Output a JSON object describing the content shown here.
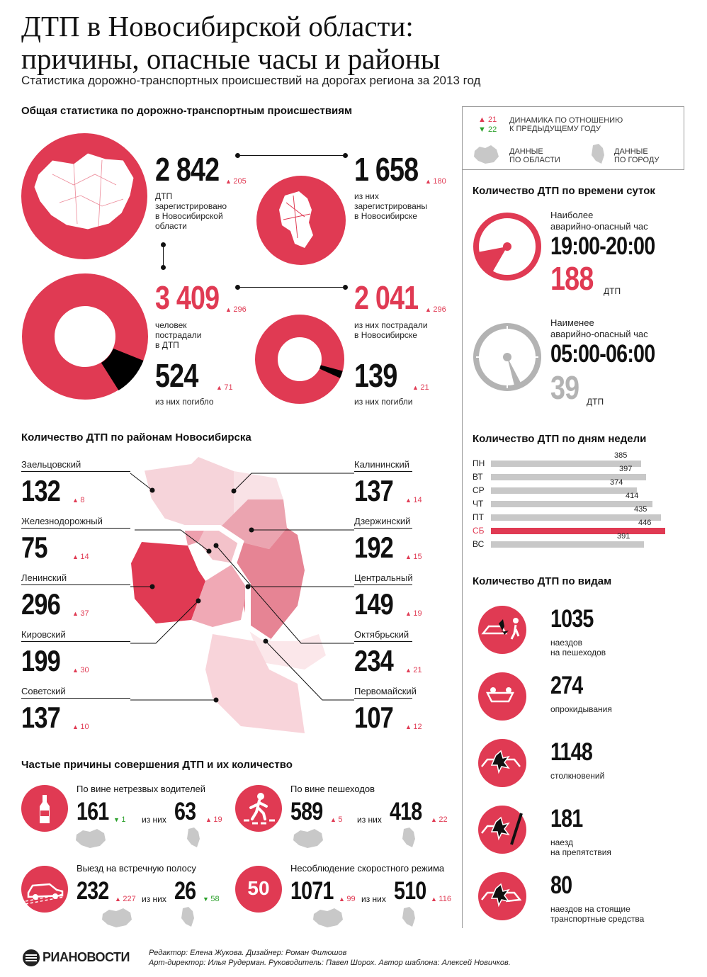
{
  "header": {
    "title_line1": "ДТП в Новосибирской области:",
    "title_line2": "причины, опасные часы и районы",
    "subtitle": "Статистика дорожно-транспортных происшествий на дорогах региона за 2013 год"
  },
  "legend": {
    "up_value": "21",
    "down_value": "22",
    "dynamics_label_1": "ДИНАМИКА ПО ОТНОШЕНИЮ",
    "dynamics_label_2": "К ПРЕДЫДУЩЕМУ ГОДУ",
    "region_label_1": "ДАННЫЕ",
    "region_label_2": "ПО ОБЛАСТИ",
    "city_label_1": "ДАННЫЕ",
    "city_label_2": "ПО ГОРОДУ",
    "colors": {
      "up": "#e03a53",
      "down": "#2aa02a"
    }
  },
  "general": {
    "heading": "Общая статистика по дорожно-транспортным происшествиям",
    "region_accidents": {
      "value": "2 842",
      "delta": "205",
      "l1": "ДТП",
      "l2": "зарегистрировано",
      "l3": "в Новосибирской",
      "l4": "области"
    },
    "city_accidents": {
      "value": "1 658",
      "delta": "180",
      "l1": "из них",
      "l2": "зарегистрированы",
      "l3": "в Новосибирске"
    },
    "region_injured": {
      "value": "3 409",
      "delta": "296",
      "l1": "человек",
      "l2": "пострадали",
      "l3": "в ДТП"
    },
    "region_killed": {
      "value": "524",
      "delta": "71",
      "l1": "из них погибло"
    },
    "city_injured": {
      "value": "2 041",
      "delta": "296",
      "l1": "из них пострадали",
      "l2": "в Новосибирске"
    },
    "city_killed": {
      "value": "139",
      "delta": "21",
      "l1": "из них погибли"
    }
  },
  "districts": {
    "heading": "Количество ДТП по районам Новосибирска",
    "left": [
      {
        "name": "Заельцовский",
        "value": "132",
        "delta": "8"
      },
      {
        "name": "Железнодорожный",
        "value": "75",
        "delta": "14"
      },
      {
        "name": "Ленинский",
        "value": "296",
        "delta": "37"
      },
      {
        "name": "Кировский",
        "value": "199",
        "delta": "30"
      },
      {
        "name": "Советский",
        "value": "137",
        "delta": "10"
      }
    ],
    "right": [
      {
        "name": "Калининский",
        "value": "137",
        "delta": "14"
      },
      {
        "name": "Дзержинский",
        "value": "192",
        "delta": "15"
      },
      {
        "name": "Центральный",
        "value": "149",
        "delta": "19"
      },
      {
        "name": "Октябрьский",
        "value": "234",
        "delta": "21"
      },
      {
        "name": "Первомайский",
        "value": "107",
        "delta": "12"
      }
    ]
  },
  "causes": {
    "heading": "Частые причины совершения ДТП и их количество",
    "of_them": "из них",
    "items": [
      {
        "label": "По вине нетрезвых водителей",
        "region": "161",
        "region_delta": "1",
        "region_dir": "down",
        "city": "63",
        "city_delta": "19",
        "city_dir": "up"
      },
      {
        "label": "По вине пешеходов",
        "region": "589",
        "region_delta": "5",
        "region_dir": "up",
        "city": "418",
        "city_delta": "22",
        "city_dir": "up"
      },
      {
        "label": "Выезд на встречную полосу",
        "region": "232",
        "region_delta": "227",
        "region_dir": "up",
        "city": "26",
        "city_delta": "58",
        "city_dir": "down"
      },
      {
        "label": "Несоблюдение скоростного режима",
        "region": "1071",
        "region_delta": "99",
        "region_dir": "up",
        "city": "510",
        "city_delta": "116",
        "city_dir": "up",
        "icon_text": "50"
      }
    ]
  },
  "time_of_day": {
    "heading": "Количество ДТП по времени суток",
    "most_l1": "Наиболее",
    "most_l2": "аварийно-опасный час",
    "most_hour": "19:00-20:00",
    "most_value": "188",
    "least_l1": "Наименее",
    "least_l2": "аварийно-опасный час",
    "least_hour": "05:00-06:00",
    "least_value": "39",
    "unit": "ДТП"
  },
  "chart_data": {
    "type": "bar",
    "title": "Количество ДТП по дням недели",
    "categories": [
      "ПН",
      "ВТ",
      "СР",
      "ЧТ",
      "ПТ",
      "СБ",
      "ВС"
    ],
    "values": [
      385,
      397,
      374,
      414,
      435,
      446,
      391
    ],
    "highlight": "СБ",
    "colors": {
      "bar": "#c8c8c8",
      "highlight": "#e03a53"
    }
  },
  "types": {
    "heading": "Количество ДТП по видам",
    "items": [
      {
        "value": "1035",
        "l1": "наездов",
        "l2": "на пешеходов"
      },
      {
        "value": "274",
        "l1": "опрокидывания",
        "l2": ""
      },
      {
        "value": "1148",
        "l1": "столкновений",
        "l2": ""
      },
      {
        "value": "181",
        "l1": "наезд",
        "l2": "на препятствия"
      },
      {
        "value": "80",
        "l1": "наездов на стоящие",
        "l2": "транспортные средства"
      }
    ]
  },
  "footer": {
    "logo": "РИАНОВОСТИ",
    "line1": "Редактор: Елена Жукова. Дизайнер: Роман Филюшов",
    "line2": "Арт-директор: Илья Рудерман. Руководитель: Павел Шорох. Автор шаблона: Алексей Новичков."
  }
}
